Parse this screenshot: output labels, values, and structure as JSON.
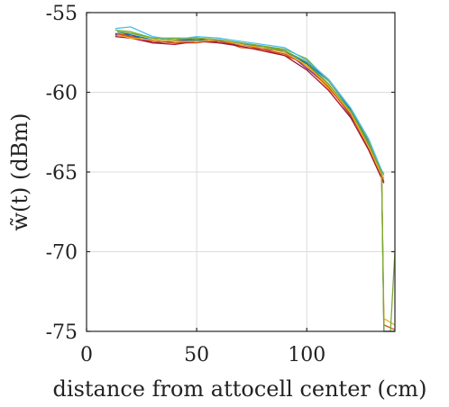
{
  "chart_data": {
    "type": "line",
    "title": "",
    "xlabel": "distance from attocell center (cm)",
    "ylabel": "w̃(t) (dBm)",
    "xlim": [
      0,
      140
    ],
    "ylim": [
      -75,
      -55
    ],
    "xticks": [
      0,
      50,
      100
    ],
    "yticks": [
      -55,
      -60,
      -65,
      -70,
      -75
    ],
    "xtick_labels": [
      "0",
      "50",
      "100"
    ],
    "ytick_labels": [
      "-55",
      "-60",
      "-65",
      "-70",
      "-75"
    ],
    "grid": true,
    "legend": "none",
    "series": [
      {
        "color": "#0072BD",
        "points": [
          [
            13,
            -56.3
          ],
          [
            20,
            -56.6
          ],
          [
            30,
            -56.7
          ],
          [
            40,
            -56.8
          ],
          [
            50,
            -56.8
          ],
          [
            60,
            -56.8
          ],
          [
            70,
            -57.0
          ],
          [
            80,
            -57.1
          ],
          [
            90,
            -57.4
          ],
          [
            100,
            -58.1
          ],
          [
            110,
            -59.3
          ],
          [
            120,
            -61.1
          ],
          [
            128,
            -63.1
          ],
          [
            134,
            -65.0
          ]
        ]
      },
      {
        "color": "#D95319",
        "points": [
          [
            13,
            -56.4
          ],
          [
            20,
            -56.5
          ],
          [
            30,
            -56.8
          ],
          [
            40,
            -56.9
          ],
          [
            50,
            -56.9
          ],
          [
            60,
            -56.7
          ],
          [
            70,
            -57.2
          ],
          [
            80,
            -57.3
          ],
          [
            90,
            -57.7
          ],
          [
            100,
            -58.2
          ],
          [
            110,
            -59.7
          ],
          [
            120,
            -61.4
          ],
          [
            128,
            -63.5
          ],
          [
            134,
            -65.2
          ],
          [
            135,
            -65.6
          ]
        ]
      },
      {
        "color": "#EDB120",
        "points": [
          [
            13,
            -56.4
          ],
          [
            20,
            -56.3
          ],
          [
            30,
            -56.6
          ],
          [
            40,
            -56.7
          ],
          [
            50,
            -56.8
          ],
          [
            60,
            -56.8
          ],
          [
            70,
            -57.0
          ],
          [
            80,
            -57.2
          ],
          [
            90,
            -57.5
          ],
          [
            100,
            -58.4
          ],
          [
            110,
            -59.8
          ],
          [
            120,
            -61.2
          ],
          [
            128,
            -63.3
          ],
          [
            134,
            -65.1
          ],
          [
            135,
            -65.4
          ]
        ]
      },
      {
        "color": "#7E2F8E",
        "points": [
          [
            13,
            -56.4
          ],
          [
            20,
            -56.4
          ],
          [
            30,
            -56.9
          ],
          [
            40,
            -56.8
          ],
          [
            50,
            -56.6
          ],
          [
            60,
            -56.9
          ],
          [
            70,
            -57.0
          ],
          [
            80,
            -57.3
          ],
          [
            90,
            -57.4
          ],
          [
            100,
            -58.5
          ],
          [
            110,
            -59.6
          ],
          [
            120,
            -61.5
          ],
          [
            128,
            -63.2
          ],
          [
            134,
            -65.3
          ]
        ]
      },
      {
        "color": "#77AC30",
        "points": [
          [
            13,
            -56.1
          ],
          [
            20,
            -56.2
          ],
          [
            30,
            -56.6
          ],
          [
            40,
            -56.6
          ],
          [
            50,
            -56.6
          ],
          [
            60,
            -56.7
          ],
          [
            70,
            -56.9
          ],
          [
            80,
            -57.1
          ],
          [
            90,
            -57.3
          ],
          [
            100,
            -57.9
          ],
          [
            110,
            -59.3
          ],
          [
            120,
            -61.0
          ],
          [
            128,
            -63.0
          ],
          [
            134,
            -64.9
          ],
          [
            135,
            -65.2
          ]
        ]
      },
      {
        "color": "#4DBEEE",
        "points": [
          [
            13,
            -56.0
          ],
          [
            20,
            -55.9
          ],
          [
            30,
            -56.5
          ],
          [
            40,
            -56.7
          ],
          [
            50,
            -56.5
          ],
          [
            60,
            -56.6
          ],
          [
            70,
            -56.8
          ],
          [
            80,
            -57.0
          ],
          [
            90,
            -57.2
          ],
          [
            100,
            -58.0
          ],
          [
            110,
            -59.2
          ],
          [
            120,
            -61.0
          ],
          [
            128,
            -62.9
          ],
          [
            134,
            -64.9
          ],
          [
            135,
            -65.1
          ]
        ]
      },
      {
        "color": "#A2142F",
        "points": [
          [
            13,
            -56.5
          ],
          [
            20,
            -56.6
          ],
          [
            30,
            -56.9
          ],
          [
            40,
            -57.0
          ],
          [
            50,
            -56.8
          ],
          [
            60,
            -56.9
          ],
          [
            70,
            -57.1
          ],
          [
            80,
            -57.4
          ],
          [
            90,
            -57.7
          ],
          [
            100,
            -58.6
          ],
          [
            110,
            -59.9
          ],
          [
            120,
            -61.6
          ],
          [
            128,
            -63.6
          ],
          [
            134,
            -65.4
          ],
          [
            135,
            -65.7
          ]
        ]
      },
      {
        "color": "#0072BD",
        "points": [
          [
            14,
            -56.2
          ],
          [
            20,
            -56.4
          ],
          [
            30,
            -56.7
          ],
          [
            40,
            -56.8
          ],
          [
            50,
            -56.7
          ],
          [
            60,
            -56.8
          ],
          [
            70,
            -56.9
          ],
          [
            80,
            -57.2
          ],
          [
            90,
            -57.4
          ],
          [
            100,
            -58.2
          ],
          [
            110,
            -59.5
          ],
          [
            120,
            -61.3
          ],
          [
            128,
            -63.3
          ],
          [
            134,
            -65.1
          ],
          [
            135,
            -75.0
          ],
          [
            140,
            -75.0
          ]
        ]
      },
      {
        "color": "#D95319",
        "points": [
          [
            14,
            -56.3
          ],
          [
            20,
            -56.5
          ],
          [
            30,
            -56.8
          ],
          [
            40,
            -56.9
          ],
          [
            50,
            -56.8
          ],
          [
            60,
            -56.8
          ],
          [
            70,
            -57.0
          ],
          [
            80,
            -57.3
          ],
          [
            90,
            -57.6
          ],
          [
            100,
            -58.3
          ],
          [
            110,
            -59.7
          ],
          [
            120,
            -61.4
          ],
          [
            128,
            -63.4
          ],
          [
            134,
            -65.2
          ],
          [
            135,
            -74.6
          ],
          [
            140,
            -74.9
          ]
        ]
      },
      {
        "color": "#EDB120",
        "points": [
          [
            14,
            -56.4
          ],
          [
            20,
            -56.6
          ],
          [
            30,
            -56.7
          ],
          [
            40,
            -56.8
          ],
          [
            50,
            -56.8
          ],
          [
            60,
            -56.7
          ],
          [
            70,
            -57.0
          ],
          [
            80,
            -57.2
          ],
          [
            90,
            -57.5
          ],
          [
            100,
            -58.3
          ],
          [
            110,
            -59.6
          ],
          [
            120,
            -61.3
          ],
          [
            128,
            -63.4
          ],
          [
            134,
            -65.2
          ],
          [
            135,
            -74.2
          ],
          [
            140,
            -74.6
          ]
        ]
      },
      {
        "color": "#77AC30",
        "points": [
          [
            14,
            -56.2
          ],
          [
            20,
            -56.3
          ],
          [
            30,
            -56.6
          ],
          [
            40,
            -56.7
          ],
          [
            50,
            -56.6
          ],
          [
            60,
            -56.7
          ],
          [
            70,
            -56.9
          ],
          [
            80,
            -57.1
          ],
          [
            90,
            -57.4
          ],
          [
            100,
            -58.1
          ],
          [
            110,
            -59.5
          ],
          [
            120,
            -61.2
          ],
          [
            128,
            -63.2
          ],
          [
            134,
            -65.0
          ],
          [
            135,
            -75.0
          ],
          [
            138,
            -75.0
          ],
          [
            140,
            -70.0
          ]
        ]
      }
    ]
  }
}
